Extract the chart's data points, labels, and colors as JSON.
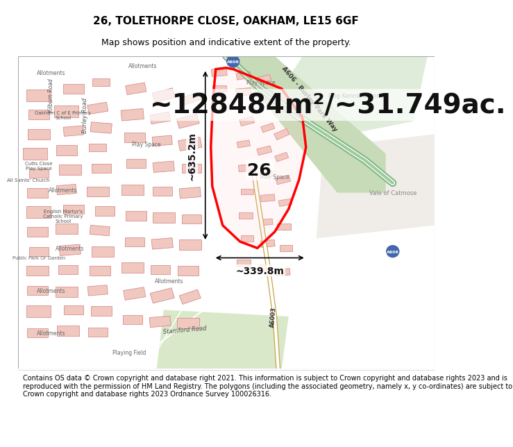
{
  "title_line1": "26, TOLETHORPE CLOSE, OAKHAM, LE15 6GF",
  "title_line2": "Map shows position and indicative extent of the property.",
  "big_text": "~128484m²/~31.749ac.",
  "dim_vertical": "~635.2m",
  "dim_horizontal": "~339.8m",
  "label_26": "26",
  "copyright_text": "Contains OS data © Crown copyright and database right 2021. This information is subject to Crown copyright and database rights 2023 and is reproduced with the permission of HM Land Registry. The polygons (including the associated geometry, namely x, y co-ordinates) are subject to Crown copyright and database rights 2023 Ordnance Survey 100026316.",
  "title_fontsize": 11,
  "subtitle_fontsize": 9,
  "big_fontsize": 28,
  "dim_fontsize": 10,
  "label_fontsize": 18,
  "copyright_fontsize": 7.0
}
